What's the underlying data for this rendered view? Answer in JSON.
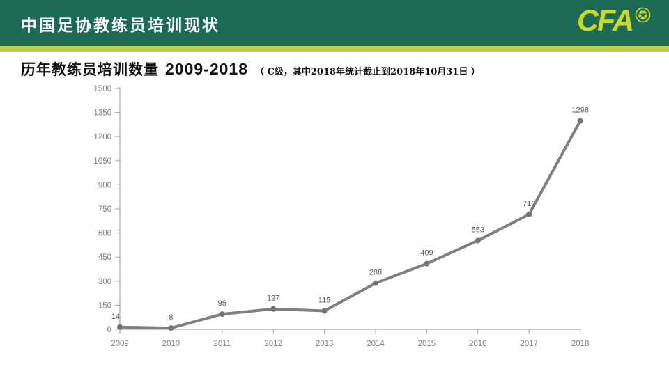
{
  "header": {
    "title": "中国足协教练员培训现状",
    "logo_text": "CFA",
    "colors": {
      "bar_bg": "#1d6b54",
      "accent_strip": "#bdd03e",
      "logo": "#c9da2f"
    }
  },
  "subtitle": {
    "label": "历年教练员培训数量",
    "range": "2009-2018",
    "note": "（ C级，其中2018年统计截止到2018年10月31日 ）"
  },
  "chart_data": {
    "type": "line",
    "categories": [
      "2009",
      "2010",
      "2011",
      "2012",
      "2013",
      "2014",
      "2015",
      "2016",
      "2017",
      "2018"
    ],
    "values": [
      14,
      8,
      95,
      127,
      115,
      288,
      409,
      553,
      716,
      1298
    ],
    "title": "历年教练员培训数量 2009-2018",
    "xlabel": "",
    "ylabel": "",
    "ylim": [
      0,
      1500
    ],
    "yticks": [
      0,
      150,
      300,
      450,
      600,
      750,
      900,
      1050,
      1200,
      1350,
      1500
    ],
    "grid": false,
    "legend": false,
    "data_labels": true,
    "colors": {
      "line": "#7f7f7f",
      "marker": "#737373",
      "axis": "#a6a6a6",
      "tick_label": "#808080",
      "data_label": "#595959"
    }
  }
}
